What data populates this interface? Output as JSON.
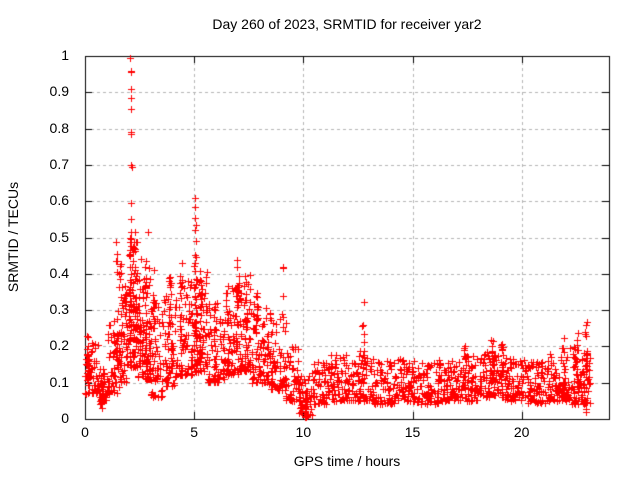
{
  "window": {
    "background": "#ffffff"
  },
  "chart_data": {
    "type": "scatter",
    "title": "Day 260 of 2023, SRMTID for receiver yar2",
    "xlabel": "GPS time / hours",
    "ylabel": "SRMTID / TECUs",
    "xlim": [
      0,
      24
    ],
    "ylim": [
      0,
      1
    ],
    "xticks": {
      "values": [
        0,
        5,
        10,
        15,
        20
      ],
      "labels": [
        "0",
        "5",
        "10",
        "15",
        "20"
      ]
    },
    "yticks": {
      "values": [
        0,
        0.1,
        0.2,
        0.3,
        0.4,
        0.5,
        0.6,
        0.7,
        0.8,
        0.9,
        1
      ],
      "labels": [
        "0",
        "0.1",
        "0.2",
        "0.3",
        "0.4",
        "0.5",
        "0.6",
        "0.7",
        "0.8",
        "0.9",
        "1"
      ]
    },
    "grid": {
      "on": true,
      "dashed": true,
      "color": "#b4b4b4",
      "x_lines": [
        5,
        10,
        15,
        20
      ],
      "y_lines": [
        0.1,
        0.2,
        0.3,
        0.4,
        0.5,
        0.6,
        0.7,
        0.8,
        0.9
      ]
    },
    "border_color": "#000000",
    "marker": {
      "glyph": "plus",
      "size": 7,
      "color": "#ff0000"
    },
    "legend": {
      "visible": false
    },
    "seed": 42,
    "x_data_end": 23.15,
    "bands": [
      {
        "x0": 0.0,
        "x1": 0.6,
        "lo": 0.07,
        "hi": 0.23,
        "n": 55,
        "skew": 1.6
      },
      {
        "x0": 0.6,
        "x1": 1.0,
        "lo": 0.04,
        "hi": 0.14,
        "n": 40,
        "skew": 1.4
      },
      {
        "x0": 1.0,
        "x1": 1.6,
        "lo": 0.07,
        "hi": 0.28,
        "n": 55,
        "skew": 1.8
      },
      {
        "x0": 1.6,
        "x1": 2.0,
        "lo": 0.1,
        "hi": 0.38,
        "n": 50,
        "skew": 1.6
      },
      {
        "x0": 2.0,
        "x1": 2.4,
        "lo": 0.14,
        "hi": 0.5,
        "n": 70,
        "skew": 1.5
      },
      {
        "x0": 2.4,
        "x1": 3.0,
        "lo": 0.11,
        "hi": 0.45,
        "n": 80,
        "skew": 1.8
      },
      {
        "x0": 3.0,
        "x1": 3.6,
        "lo": 0.06,
        "hi": 0.32,
        "n": 60,
        "skew": 1.8
      },
      {
        "x0": 3.6,
        "x1": 4.2,
        "lo": 0.09,
        "hi": 0.35,
        "n": 60,
        "skew": 1.8
      },
      {
        "x0": 4.2,
        "x1": 5.0,
        "lo": 0.12,
        "hi": 0.38,
        "n": 75,
        "skew": 1.8
      },
      {
        "x0": 5.0,
        "x1": 5.6,
        "lo": 0.13,
        "hi": 0.42,
        "n": 70,
        "skew": 1.6
      },
      {
        "x0": 5.6,
        "x1": 6.4,
        "lo": 0.1,
        "hi": 0.32,
        "n": 70,
        "skew": 1.8
      },
      {
        "x0": 6.4,
        "x1": 7.0,
        "lo": 0.12,
        "hi": 0.38,
        "n": 60,
        "skew": 1.7
      },
      {
        "x0": 7.0,
        "x1": 7.6,
        "lo": 0.13,
        "hi": 0.4,
        "n": 65,
        "skew": 1.6
      },
      {
        "x0": 7.6,
        "x1": 8.4,
        "lo": 0.1,
        "hi": 0.33,
        "n": 70,
        "skew": 1.8
      },
      {
        "x0": 8.4,
        "x1": 9.2,
        "lo": 0.08,
        "hi": 0.3,
        "n": 65,
        "skew": 1.8
      },
      {
        "x0": 9.2,
        "x1": 9.8,
        "lo": 0.05,
        "hi": 0.2,
        "n": 50,
        "skew": 1.6
      },
      {
        "x0": 9.8,
        "x1": 10.4,
        "lo": 0.01,
        "hi": 0.12,
        "n": 45,
        "skew": 1.3
      },
      {
        "x0": 10.4,
        "x1": 11.2,
        "lo": 0.04,
        "hi": 0.16,
        "n": 60,
        "skew": 1.5
      },
      {
        "x0": 11.2,
        "x1": 12.2,
        "lo": 0.05,
        "hi": 0.18,
        "n": 75,
        "skew": 1.6
      },
      {
        "x0": 12.2,
        "x1": 13.2,
        "lo": 0.05,
        "hi": 0.19,
        "n": 75,
        "skew": 1.6
      },
      {
        "x0": 13.2,
        "x1": 14.2,
        "lo": 0.04,
        "hi": 0.16,
        "n": 75,
        "skew": 1.6
      },
      {
        "x0": 14.2,
        "x1": 15.2,
        "lo": 0.05,
        "hi": 0.17,
        "n": 75,
        "skew": 1.6
      },
      {
        "x0": 15.2,
        "x1": 16.2,
        "lo": 0.04,
        "hi": 0.16,
        "n": 75,
        "skew": 1.6
      },
      {
        "x0": 16.2,
        "x1": 17.2,
        "lo": 0.05,
        "hi": 0.17,
        "n": 75,
        "skew": 1.6
      },
      {
        "x0": 17.2,
        "x1": 18.2,
        "lo": 0.05,
        "hi": 0.18,
        "n": 75,
        "skew": 1.6
      },
      {
        "x0": 18.2,
        "x1": 19.2,
        "lo": 0.06,
        "hi": 0.2,
        "n": 80,
        "skew": 1.6
      },
      {
        "x0": 19.2,
        "x1": 20.2,
        "lo": 0.05,
        "hi": 0.17,
        "n": 75,
        "skew": 1.6
      },
      {
        "x0": 20.2,
        "x1": 21.2,
        "lo": 0.04,
        "hi": 0.16,
        "n": 75,
        "skew": 1.6
      },
      {
        "x0": 21.2,
        "x1": 22.2,
        "lo": 0.05,
        "hi": 0.18,
        "n": 75,
        "skew": 1.6
      },
      {
        "x0": 22.2,
        "x1": 23.15,
        "lo": 0.04,
        "hi": 0.2,
        "n": 70,
        "skew": 1.5
      }
    ],
    "columns": [
      {
        "x": 0.12,
        "lo": 0.1,
        "hi": 0.23,
        "n": 12
      },
      {
        "x": 0.8,
        "lo": 0.03,
        "hi": 0.1,
        "n": 14
      },
      {
        "x": 1.45,
        "lo": 0.12,
        "hi": 0.5,
        "n": 14
      },
      {
        "x": 1.62,
        "lo": 0.15,
        "hi": 0.48,
        "n": 12
      },
      {
        "x": 2.08,
        "lo": 0.2,
        "hi": 0.52,
        "n": 22
      },
      {
        "x": 2.3,
        "lo": 0.18,
        "hi": 0.52,
        "n": 16
      },
      {
        "x": 2.5,
        "lo": 0.15,
        "hi": 0.48,
        "n": 14
      },
      {
        "x": 2.8,
        "lo": 0.15,
        "hi": 0.47,
        "n": 14
      },
      {
        "x": 3.15,
        "lo": 0.12,
        "hi": 0.42,
        "n": 12
      },
      {
        "x": 3.9,
        "lo": 0.12,
        "hi": 0.4,
        "n": 12
      },
      {
        "x": 4.4,
        "lo": 0.14,
        "hi": 0.43,
        "n": 14
      },
      {
        "x": 5.05,
        "lo": 0.2,
        "hi": 0.5,
        "n": 24
      },
      {
        "x": 5.3,
        "lo": 0.15,
        "hi": 0.43,
        "n": 16
      },
      {
        "x": 5.95,
        "lo": 0.1,
        "hi": 0.33,
        "n": 12
      },
      {
        "x": 6.55,
        "lo": 0.12,
        "hi": 0.35,
        "n": 12
      },
      {
        "x": 6.95,
        "lo": 0.18,
        "hi": 0.46,
        "n": 22
      },
      {
        "x": 7.35,
        "lo": 0.15,
        "hi": 0.4,
        "n": 14
      },
      {
        "x": 7.85,
        "lo": 0.12,
        "hi": 0.35,
        "n": 12
      },
      {
        "x": 9.05,
        "lo": 0.1,
        "hi": 0.42,
        "n": 12
      },
      {
        "x": 10.1,
        "lo": 0.005,
        "hi": 0.06,
        "n": 22
      },
      {
        "x": 12.75,
        "lo": 0.08,
        "hi": 0.33,
        "n": 12
      },
      {
        "x": 17.4,
        "lo": 0.08,
        "hi": 0.24,
        "n": 10
      },
      {
        "x": 18.65,
        "lo": 0.1,
        "hi": 0.23,
        "n": 14
      },
      {
        "x": 19.1,
        "lo": 0.09,
        "hi": 0.22,
        "n": 12
      },
      {
        "x": 21.9,
        "lo": 0.08,
        "hi": 0.24,
        "n": 14
      },
      {
        "x": 22.55,
        "lo": 0.05,
        "hi": 0.24,
        "n": 16
      },
      {
        "x": 22.95,
        "lo": 0.02,
        "hi": 0.27,
        "n": 24
      }
    ],
    "outliers": [
      [
        2.08,
        0.995
      ],
      [
        2.1,
        0.96
      ],
      [
        2.12,
        0.955
      ],
      [
        2.09,
        0.91
      ],
      [
        2.11,
        0.885
      ],
      [
        2.1,
        0.855
      ],
      [
        2.09,
        0.79
      ],
      [
        2.12,
        0.785
      ],
      [
        2.1,
        0.7
      ],
      [
        2.13,
        0.695
      ],
      [
        2.11,
        0.595
      ],
      [
        2.09,
        0.55
      ],
      [
        2.87,
        0.515
      ],
      [
        5.03,
        0.61
      ],
      [
        5.06,
        0.585
      ],
      [
        5.04,
        0.555
      ],
      [
        5.08,
        0.535
      ],
      [
        5.05,
        0.52
      ]
    ]
  }
}
